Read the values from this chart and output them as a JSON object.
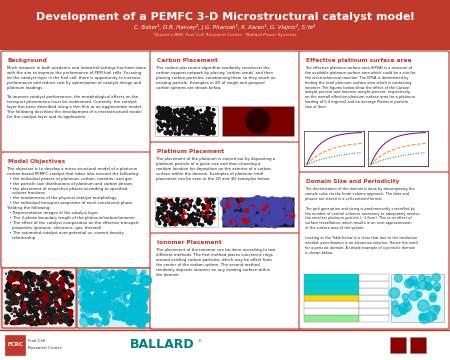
{
  "title": "Development of a PEMFC 3-D Microstructural catalyst model",
  "authors": "C. Baker¹, D.B. Harvey², J.G. Pharoah¹, K. Karan¹, G. Vlajnic², S.Ye²",
  "affiliations": "¹Queen's-RMC Fuel Cell Research Centre  ²Ballard Power Systems",
  "header_bg": "#c0392b",
  "header_text_color": "#ffffff",
  "panel_bg": "#ffffff",
  "panel_border": "#c0392b",
  "section_title_color": "#c0392b",
  "body_text_color": "#222222",
  "accent_color": "#c0392b",
  "background_color": "#d8d8d8",
  "fcrc_color": "#008080",
  "bg_title": "Background",
  "bg_text": "Much research in both academic and industrial settings has been done\nwith the aim to improve the performance of PEM fuel cells. Focusing\non the catalyst layer in the fuel cell, there is opportunity to increase\nperformance and reduce cost by optimization of catalyst design and\nplatinum loadings.\n\nTo improve catalyst performance, the morphological effects on the\ntransport phenomena must be understood. Currently, the catalyst\nlayer has been described using a thin film or an agglomerate model.\nThe following describes the development of a microstructural model\nfor the catalyst layer and its application.",
  "mo_title": "Model Objectives",
  "mo_text": "The objective is to develop a micro-structural model of a platinum\ncarbon based PEMFC catalyst that takes into account the following:\n  • the individual phases of platinum, carbon, ionomer, and gas\n  • the particle size distributions of platinum and carbon phases\n  • the placement of respective phases according to specified\n    volume fractions\n  • the randomness of the physical catalyst morphology\n  • the individual transport properties of each constituent phase\nYielding the following:\n  • Representative images of the catalyst layer\n  • The 3-phase boundary length of the platinum/carbon/ionomer\n  • The effect of the catalyst composition on the effective transport\n    properties (protonic, electronic, gas, thermal)\n  • The estimated catalyst over-potential vs. current density\n    relationship",
  "cp_title": "Carbon Placement",
  "cp_text": "The carbon placement algorithm randomly constructs the\ncarbon support network by placing 'carbon seeds' and then\nplacing carbon particles, constraining them so they touch an\nexisting particle. Examples in 2D of single and grouped\ncarbon spheres are shown below.",
  "pp_title": "Platinum Placement",
  "pp_text": "The placement of the platinum is carried out by depositing a\nplatinum particle of a given size and then choosing a\nrandom location for deposition on the exterior of a carbon\nsurface within the domain. Examples of platinum (red)\nplacement can be seen in the 2D and 3D examples below.",
  "ip_title": "Ionomer Placement",
  "ip_text": "The placement of the ionomer can be done according to two\ndifferent methods. The first method places concentric rings\naround existing carbon particles, which may be offset from\nthe center of the carbon sphere. The second method\nrandomly deposits ionomer on any existing surface within\nthe domain.",
  "epsa_title": "Effective platinum surface area",
  "epsa_text": "The effective platinum surface area (EPSA) is a measure of\nthe available platinum surface area which could be a site for\nthe electrochemical reaction. The EPSA is determined by\nfinding the total platinum surface area which is contacting\nionomer. The figures below show the effect of the Carbon\nweight percent and Ionomer weight percent, respectively,\non the overall effective platinum surface area for a platinum\nloading of 0.4 mg/cm2 and an average Platinum particle\nsize of 4nm.",
  "dsp_title": "Domain Size and Periodicity",
  "dsp_text": "The discretization of the domain is done by decomposing the\nsample cube via the finite volume approach. The data and\nphases are stored in a cell-centered format.\n\nThe grid generation and sizing is predominantly controlled by\nthe number of control volumes necessary to adequately resolve\nthe smallest platinum particle (~1.6nm). This is an effect of\nsurface tessellation, which results in an over-approximation\nof the surface area of the sphere.\n\nLooking at the Table below it is clear that due to the resolution\nneeded, periodization is an attractive solution. Hence the need\nfor a periodic domain. A simple example of a periodic domain\nis shown below."
}
